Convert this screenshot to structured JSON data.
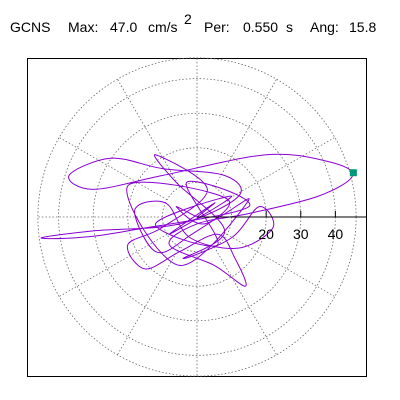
{
  "chart_data": {
    "type": "orbit",
    "title": {
      "station": "GCNS",
      "max_label": "Max:",
      "max_value": "47.0",
      "unit": "cm/s",
      "unit_power": "2",
      "per_label": "Per:",
      "per_value": "0.550",
      "per_unit": "s",
      "ang_label": "Ang:",
      "ang_value": "15.8"
    },
    "x": [
      0,
      5,
      -8,
      10,
      -12,
      6,
      -3,
      15,
      -20,
      -35,
      -45,
      -30,
      -5,
      12,
      8,
      -10,
      -25,
      -37,
      -30,
      -10,
      20,
      38,
      45,
      35,
      15,
      0,
      -8,
      5,
      14,
      11,
      6,
      -5,
      -15,
      -20,
      -10,
      3,
      -12,
      -6,
      8,
      -4,
      10,
      18,
      22,
      12,
      -2,
      -9,
      -18,
      -12,
      -3,
      9,
      -20,
      -5,
      15,
      2,
      -6,
      0
    ],
    "values": [
      0,
      4,
      -5,
      6,
      -2,
      -8,
      10,
      3,
      -4,
      -6,
      -6,
      -4,
      -2,
      6,
      12,
      14,
      17,
      12,
      8,
      12,
      18,
      16,
      12,
      6,
      1,
      -2,
      -8,
      -14,
      -20,
      -12,
      -5,
      -10,
      -15,
      -8,
      -3,
      8,
      18,
      10,
      -4,
      -12,
      -6,
      3,
      -3,
      -9,
      -6,
      4,
      2,
      -10,
      -6,
      5,
      9,
      -14,
      5,
      -2,
      3,
      0
    ],
    "color": "#8a00d4",
    "peak": {
      "x": 45.2,
      "y": 12.8,
      "color": "#00967a"
    },
    "xlim": [
      -49,
      49
    ],
    "xticks": [
      20,
      30,
      40
    ],
    "rgrid": [
      10,
      20,
      30,
      40,
      46
    ],
    "spoke_step_deg": 30
  }
}
